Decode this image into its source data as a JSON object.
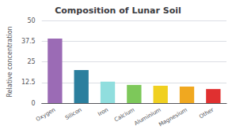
{
  "chart_data": {
    "type": "bar",
    "title": "Composition of Lunar Soil",
    "ylabel": "Relative concentration",
    "categories": [
      "Oxygen",
      "Silicon",
      "Iron",
      "Calcium",
      "Aluminium",
      "Magnesium",
      "Other"
    ],
    "values": [
      39,
      20,
      13,
      11,
      10.5,
      10,
      8.5
    ],
    "colors": [
      "#9B6BB5",
      "#2B7F9E",
      "#90DEDE",
      "#7DC85A",
      "#F0D020",
      "#F0A820",
      "#E03030"
    ],
    "ylim": [
      0,
      50
    ],
    "yticks": [
      0,
      12.5,
      25,
      37.5,
      50
    ],
    "grid": true
  }
}
